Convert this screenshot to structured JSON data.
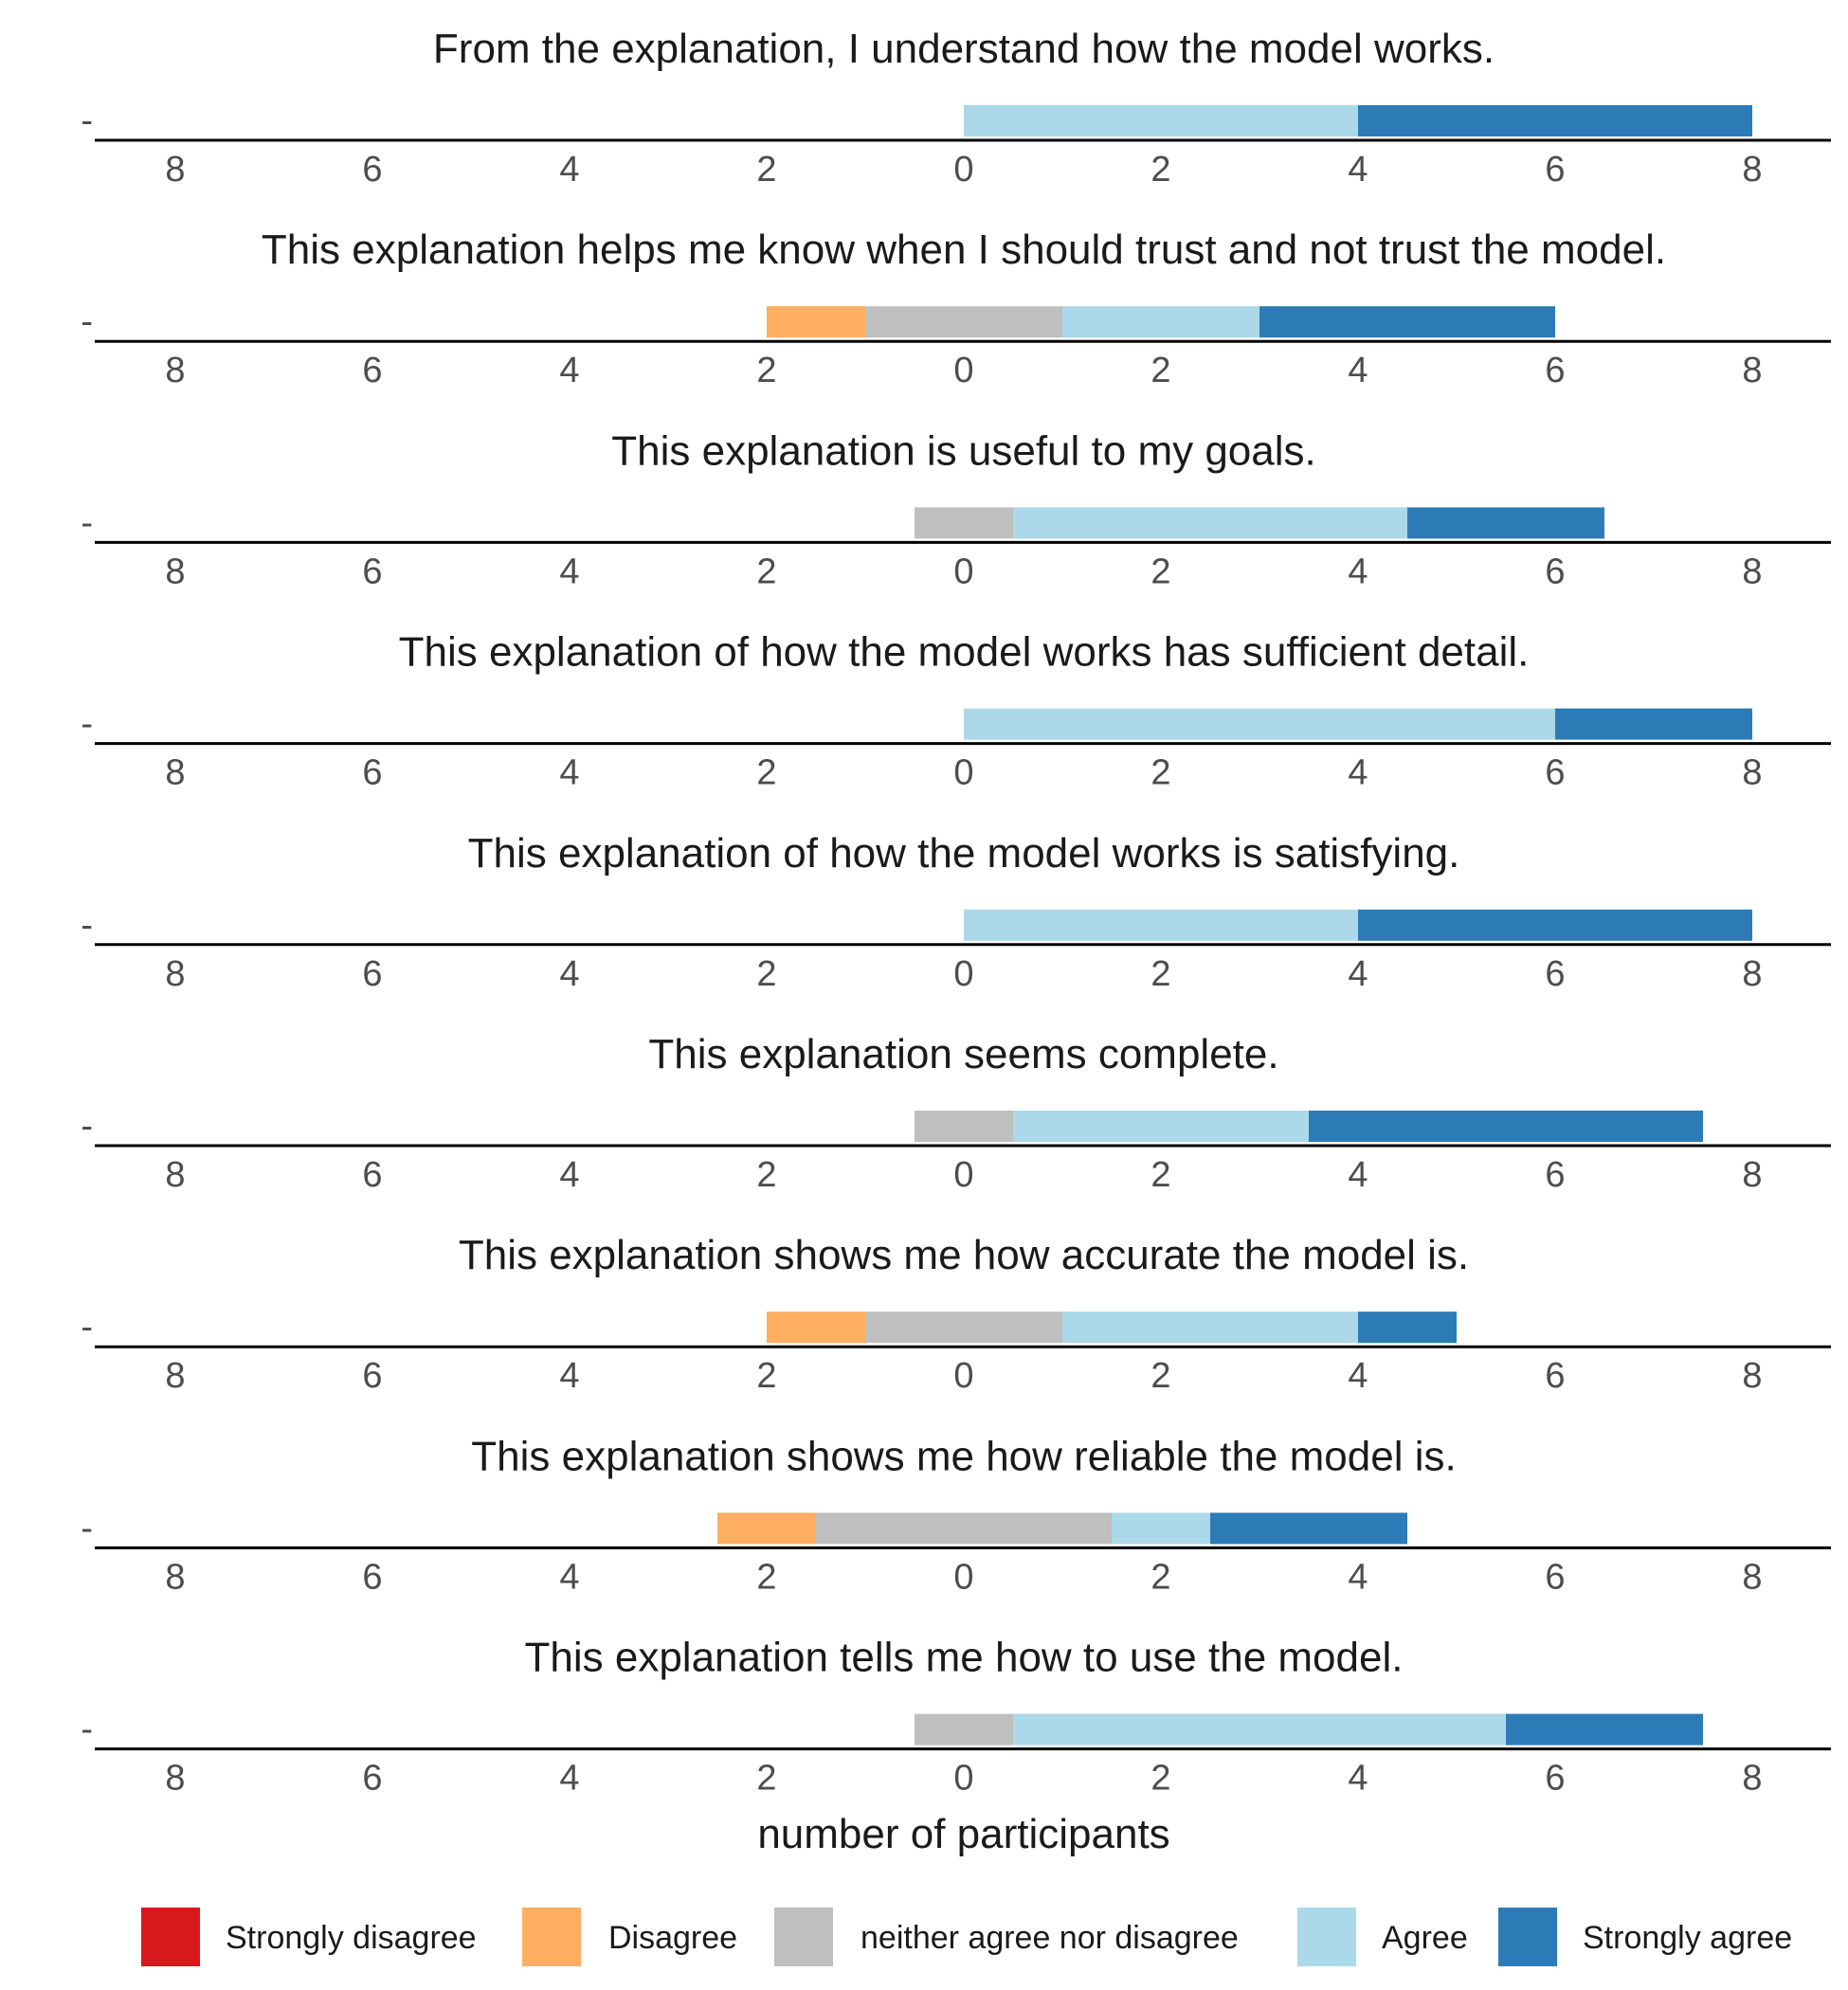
{
  "chart_data": {
    "type": "bar",
    "orientation": "horizontal-diverging",
    "xlabel": "number of participants",
    "xlim": [
      -8,
      8
    ],
    "x_ticks": [
      -8,
      -6,
      -4,
      -2,
      0,
      2,
      4,
      6,
      8
    ],
    "x_tick_labels": [
      "8",
      "6",
      "4",
      "2",
      "0",
      "2",
      "4",
      "6",
      "8"
    ],
    "y_tick_label": "-",
    "grid": false,
    "legend_position": "bottom",
    "categories": [
      "Strongly disagree",
      "Disagree",
      "neither agree nor disagree",
      "Agree",
      "Strongly agree"
    ],
    "colors": {
      "Strongly disagree": "#d7191c",
      "Disagree": "#fdae61",
      "neither agree nor disagree": "#bfbfbf",
      "Agree": "#abd9e9",
      "Strongly agree": "#2c7bb6"
    },
    "panels": [
      {
        "title": "From the explanation, I understand how the model works.",
        "counts": {
          "Strongly disagree": 0,
          "Disagree": 0,
          "neither agree nor disagree": 0,
          "Agree": 4,
          "Strongly agree": 4
        }
      },
      {
        "title": "This explanation helps me know when I should trust and not trust the model.",
        "counts": {
          "Strongly disagree": 0,
          "Disagree": 1,
          "neither agree nor disagree": 2,
          "Agree": 2,
          "Strongly agree": 3
        }
      },
      {
        "title": "This explanation is useful to my goals.",
        "counts": {
          "Strongly disagree": 0,
          "Disagree": 0,
          "neither agree nor disagree": 1,
          "Agree": 4,
          "Strongly agree": 2
        }
      },
      {
        "title": "This explanation of how the model works has sufficient detail.",
        "counts": {
          "Strongly disagree": 0,
          "Disagree": 0,
          "neither agree nor disagree": 0,
          "Agree": 6,
          "Strongly agree": 2
        }
      },
      {
        "title": "This explanation of how the model works is satisfying.",
        "counts": {
          "Strongly disagree": 0,
          "Disagree": 0,
          "neither agree nor disagree": 0,
          "Agree": 4,
          "Strongly agree": 4
        }
      },
      {
        "title": "This explanation seems complete.",
        "counts": {
          "Strongly disagree": 0,
          "Disagree": 0,
          "neither agree nor disagree": 1,
          "Agree": 3,
          "Strongly agree": 4
        }
      },
      {
        "title": "This explanation shows me how accurate the model is.",
        "counts": {
          "Strongly disagree": 0,
          "Disagree": 1,
          "neither agree nor disagree": 2,
          "Agree": 3,
          "Strongly agree": 1
        }
      },
      {
        "title": "This explanation shows me how reliable the model is.",
        "counts": {
          "Strongly disagree": 0,
          "Disagree": 1,
          "neither agree nor disagree": 3,
          "Agree": 1,
          "Strongly agree": 2
        }
      },
      {
        "title": "This explanation tells me how to use the model.",
        "counts": {
          "Strongly disagree": 0,
          "Disagree": 0,
          "neither agree nor disagree": 1,
          "Agree": 5,
          "Strongly agree": 2
        }
      }
    ]
  }
}
